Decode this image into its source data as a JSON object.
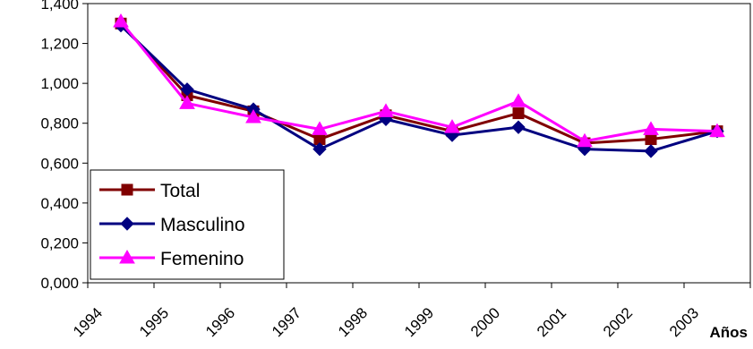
{
  "chart_data": {
    "type": "line",
    "categories": [
      "1994",
      "1995",
      "1996",
      "1997",
      "1998",
      "1999",
      "2000",
      "2001",
      "2002",
      "2003"
    ],
    "xlabel": "Años",
    "ylabel": "",
    "ylim": [
      0,
      1.4
    ],
    "y_ticks": [
      "0,000",
      "0,200",
      "0,400",
      "0,600",
      "0,800",
      "1,000",
      "1,200",
      "1,400"
    ],
    "grid": false,
    "legend": "bottom-left",
    "series": [
      {
        "name": "Total",
        "color": "#800000",
        "marker": "square",
        "values": [
          1.3,
          0.94,
          0.86,
          0.72,
          0.84,
          0.76,
          0.85,
          0.7,
          0.72,
          0.76
        ]
      },
      {
        "name": "Masculino",
        "color": "#000080",
        "marker": "diamond",
        "values": [
          1.29,
          0.97,
          0.87,
          0.67,
          0.82,
          0.74,
          0.78,
          0.67,
          0.66,
          0.76
        ]
      },
      {
        "name": "Femenino",
        "color": "#FF00FF",
        "marker": "triangle",
        "values": [
          1.31,
          0.9,
          0.83,
          0.77,
          0.86,
          0.78,
          0.91,
          0.71,
          0.77,
          0.76
        ]
      }
    ]
  }
}
